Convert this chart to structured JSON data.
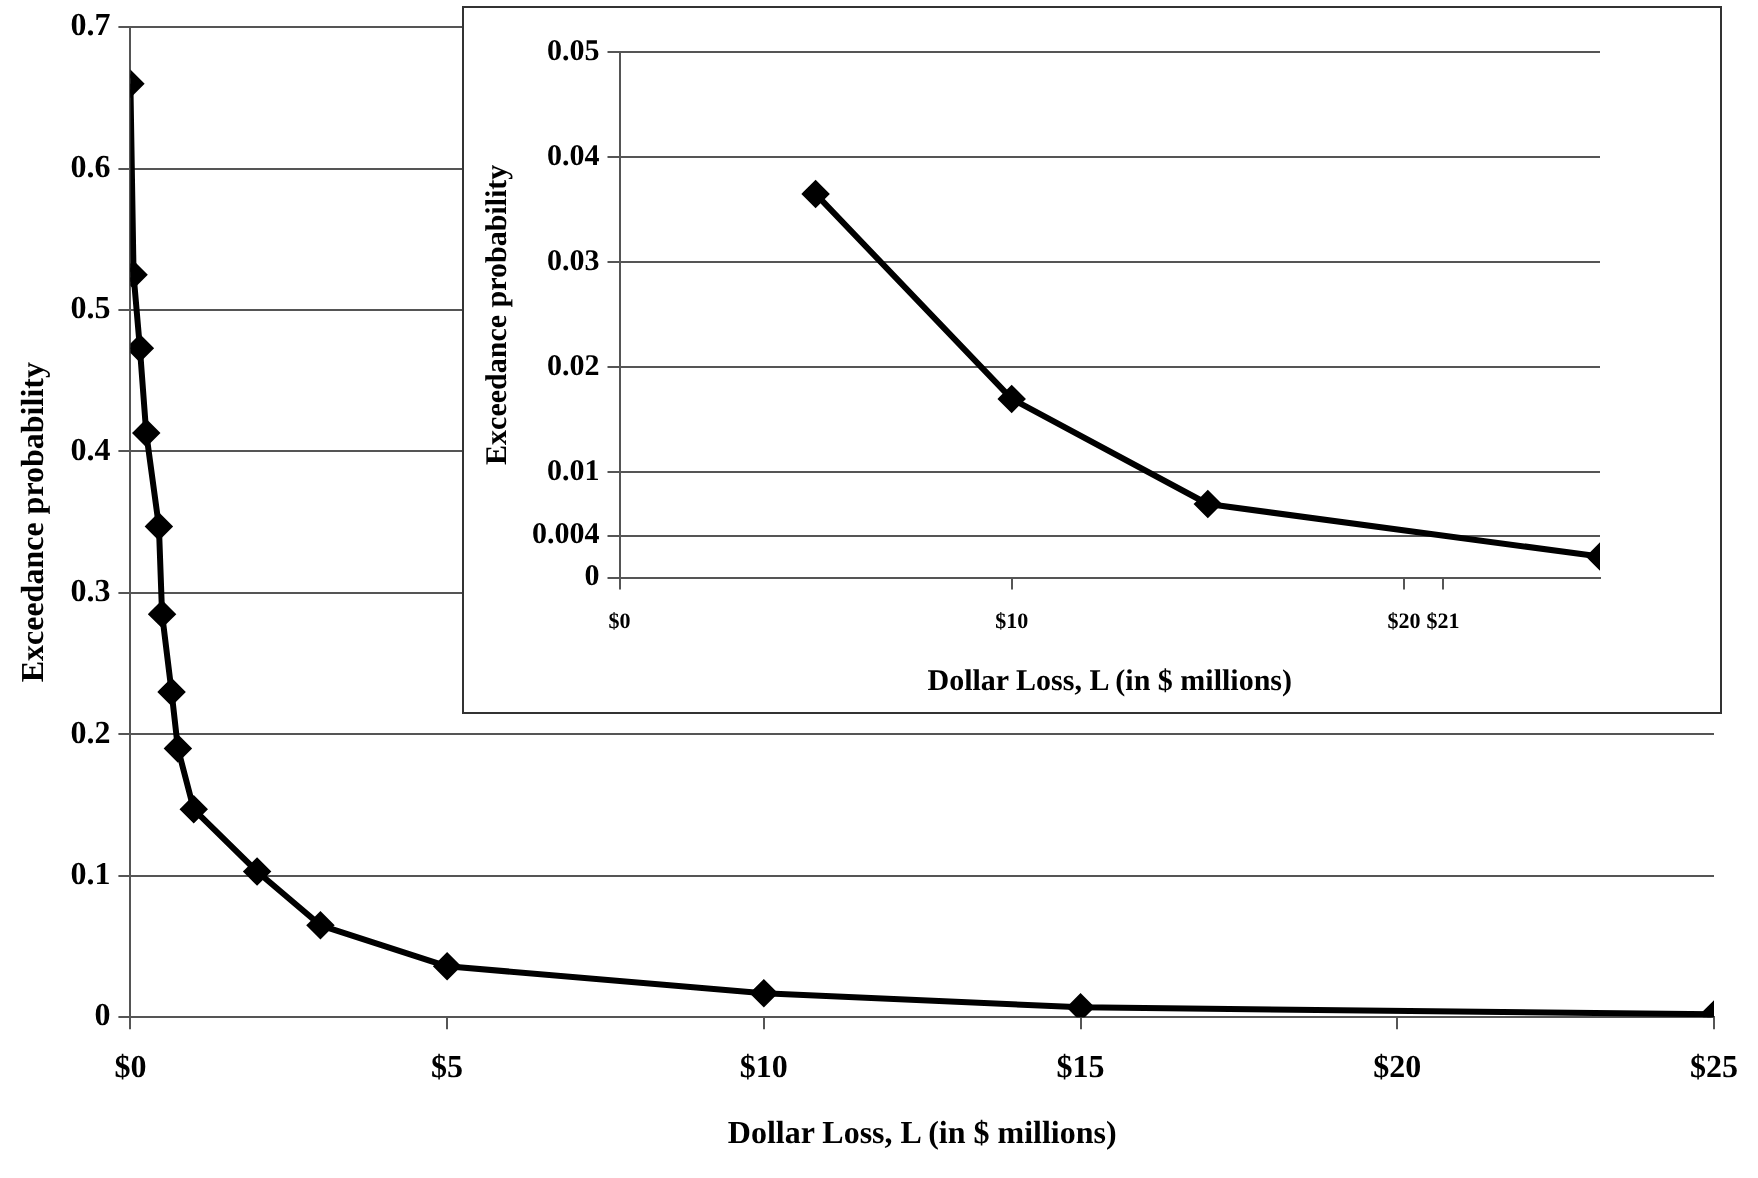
{
  "chart_data": [
    {
      "type": "line",
      "xlabel": "Dollar Loss, L (in $ millions)",
      "ylabel": "Exceedance probability",
      "x": [
        0,
        0.05,
        0.15,
        0.25,
        0.45,
        0.5,
        0.65,
        0.75,
        1,
        2,
        3,
        5,
        10,
        15,
        25
      ],
      "series": [
        {
          "color": "#000000",
          "values": [
            0.66,
            0.525,
            0.473,
            0.413,
            0.347,
            0.285,
            0.23,
            0.19,
            0.147,
            0.103,
            0.065,
            0.036,
            0.017,
            0.007,
            0.002
          ]
        }
      ],
      "xlim": [
        0,
        25
      ],
      "xticks": [
        {
          "value": 0,
          "label": "$0"
        },
        {
          "value": 5,
          "label": "$5"
        },
        {
          "value": 10,
          "label": "$10"
        },
        {
          "value": 15,
          "label": "$15"
        },
        {
          "value": 20,
          "label": "$20"
        },
        {
          "value": 25,
          "label": "$25"
        }
      ],
      "ylim": [
        0,
        0.7
      ],
      "yticks": [
        0,
        0.1,
        0.2,
        0.3,
        0.4,
        0.5,
        0.6,
        0.7
      ],
      "grid": "y",
      "marker": "diamond",
      "line_style": "solid"
    },
    {
      "type": "line",
      "xlabel": "Dollar Loss, L (in $ millions)",
      "ylabel": "Exceedance probability",
      "x": [
        5,
        10,
        15,
        25
      ],
      "series": [
        {
          "color": "#000000",
          "values": [
            0.0365,
            0.017,
            0.007,
            0.002
          ]
        }
      ],
      "xlim": [
        0,
        25
      ],
      "xticks": [
        {
          "value": 0,
          "label": "$0"
        },
        {
          "value": 10,
          "label": "$10"
        },
        {
          "value": 20,
          "label": "$20"
        },
        {
          "value": 21,
          "label": "$21"
        }
      ],
      "ylim": [
        0,
        0.05
      ],
      "yticks": [
        0,
        0.004,
        0.01,
        0.02,
        0.03,
        0.04,
        0.05
      ],
      "grid": "y",
      "marker": "diamond",
      "line_style": "solid"
    }
  ]
}
